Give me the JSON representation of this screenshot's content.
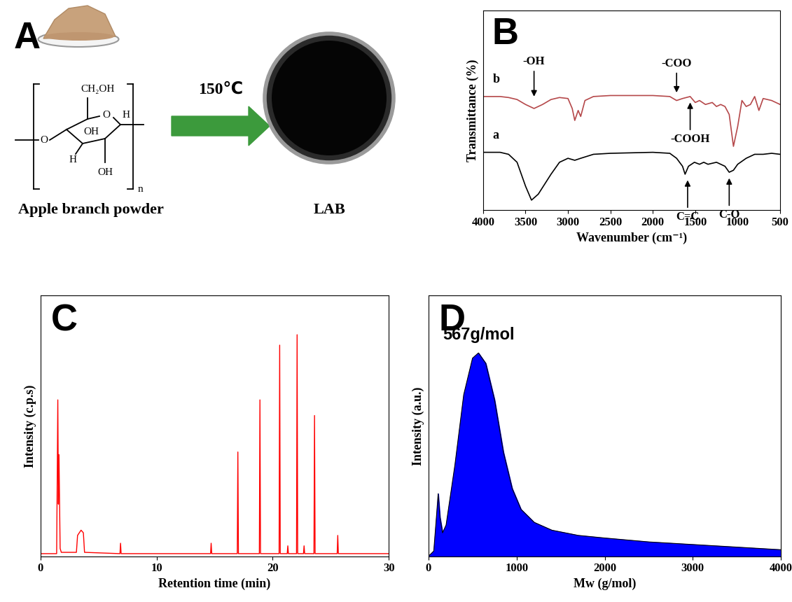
{
  "diagram": {
    "panel_label": "A",
    "left_label": "Apple branch powder",
    "right_label": "LAB",
    "arrow_label": "150℃",
    "structure": {
      "texts": [
        "O",
        "CH₂OH",
        "O",
        "H",
        "OH",
        "H",
        "OH",
        "n"
      ]
    }
  },
  "chart_data": [
    {
      "panel_label": "B",
      "type": "line",
      "x_label": "Wavenumber (cm⁻¹)",
      "y_label": "Transmittance (%)",
      "xlim": [
        4000,
        500
      ],
      "xticks": [
        4000,
        3500,
        3000,
        2500,
        2000,
        1500,
        1000,
        500
      ],
      "ylim": [
        0,
        100
      ],
      "tick_labels": "x",
      "series": [
        {
          "name": "a",
          "color": "#000000",
          "x": [
            4000,
            3800,
            3700,
            3600,
            3500,
            3430,
            3350,
            3200,
            3100,
            3000,
            2920,
            2850,
            2700,
            2500,
            2000,
            1800,
            1720,
            1650,
            1620,
            1580,
            1510,
            1450,
            1400,
            1350,
            1250,
            1150,
            1100,
            1050,
            1000,
            900,
            800,
            700,
            600,
            500
          ],
          "values": [
            29,
            29,
            28,
            24,
            12,
            5,
            8,
            18,
            24,
            26,
            25,
            26,
            28,
            28.5,
            29,
            28.5,
            26,
            22,
            18,
            22,
            24,
            23,
            24,
            23,
            24,
            22,
            19,
            20,
            23,
            26,
            28,
            28,
            28.5,
            28
          ]
        },
        {
          "name": "b",
          "color": "#b5484a",
          "x": [
            4000,
            3800,
            3700,
            3600,
            3500,
            3400,
            3300,
            3200,
            3100,
            3000,
            2950,
            2920,
            2880,
            2850,
            2800,
            2700,
            2500,
            2000,
            1800,
            1720,
            1650,
            1560,
            1500,
            1450,
            1380,
            1300,
            1250,
            1200,
            1150,
            1100,
            1050,
            1000,
            950,
            900,
            850,
            800,
            750,
            700,
            600,
            500
          ],
          "values": [
            57,
            57,
            56.5,
            55.5,
            53,
            51,
            53,
            55.5,
            56.5,
            56,
            51,
            45,
            50,
            47,
            55,
            57,
            57.5,
            57.5,
            57,
            55,
            56,
            57,
            54,
            55,
            53,
            54,
            52,
            53,
            52,
            48,
            32,
            42,
            55,
            52,
            53,
            57,
            50,
            56,
            55,
            53
          ]
        }
      ],
      "annotations": [
        {
          "text": "-OH",
          "x": 3400,
          "y": 56
        },
        {
          "text": "-COO",
          "x": 1720,
          "y": 58
        },
        {
          "text": "-COOH",
          "x": 1560,
          "y": 55
        },
        {
          "text": "C=C",
          "x": 1590,
          "y": 16
        },
        {
          "text": "C-O",
          "x": 1100,
          "y": 17
        }
      ]
    },
    {
      "panel_label": "C",
      "type": "line",
      "x_label": "Retention time (min)",
      "y_label": "Intensity (c.p.s)",
      "xlim": [
        0,
        30
      ],
      "xticks": [
        0,
        10,
        20,
        30
      ],
      "ylim": [
        0,
        100
      ],
      "tick_labels": "x",
      "color": "#ff0000",
      "x": [
        0,
        1.4,
        1.5,
        1.55,
        1.6,
        1.7,
        1.8,
        3.1,
        3.2,
        3.5,
        3.7,
        3.8,
        6.85,
        6.9,
        6.95,
        14.65,
        14.7,
        14.75,
        16.95,
        17.0,
        17.05,
        18.85,
        18.9,
        18.95,
        20.55,
        20.6,
        20.65,
        21.25,
        21.3,
        21.35,
        22.05,
        22.1,
        22.15,
        22.65,
        22.7,
        22.75,
        23.55,
        23.6,
        23.65,
        25.55,
        25.6,
        25.65,
        30
      ],
      "values": [
        1,
        1,
        60,
        20,
        39,
        3,
        1.5,
        1.5,
        8,
        10,
        9,
        1.5,
        1,
        5,
        1,
        1,
        5,
        1,
        1,
        40,
        1,
        1,
        60,
        1,
        1,
        81,
        1,
        1,
        4,
        1,
        1,
        85,
        1,
        1,
        4,
        1,
        1,
        54,
        1,
        1,
        8,
        1,
        1
      ]
    },
    {
      "panel_label": "D",
      "type": "area",
      "x_label": "Mw (g/mol)",
      "y_label": "Intensity (a.u.)",
      "xlim": [
        0,
        4000
      ],
      "xticks": [
        0,
        1000,
        2000,
        3000,
        4000
      ],
      "ylim": [
        0,
        100
      ],
      "tick_labels": "x",
      "color": "#0000ff",
      "x": [
        0,
        60,
        90,
        110,
        130,
        160,
        200,
        300,
        400,
        500,
        567,
        650,
        750,
        850,
        950,
        1050,
        1200,
        1400,
        1700,
        2000,
        2500,
        3000,
        3500,
        4000
      ],
      "values": [
        0,
        2,
        15,
        24,
        15,
        9,
        12,
        35,
        62,
        76,
        78,
        74,
        60,
        40,
        26,
        18,
        13,
        10,
        8,
        7,
        5.5,
        4.5,
        3.5,
        2.5
      ],
      "annotations": [
        {
          "text": "567g/mol",
          "x": 567,
          "y": 78
        }
      ]
    }
  ]
}
